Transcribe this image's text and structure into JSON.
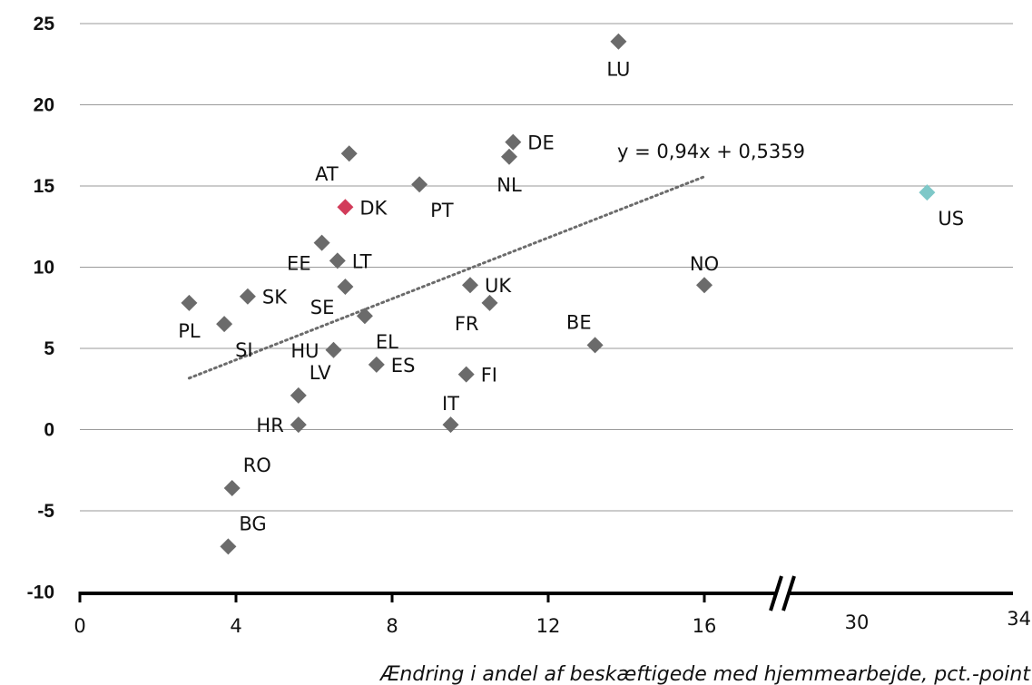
{
  "colors": {
    "point": "#6b6b6b",
    "highlight_dk": "#d23c5a",
    "highlight_us": "#7ec8c8",
    "grid": "#9a9a9a",
    "trend": "#6b6b6b"
  },
  "chart_data": {
    "type": "scatter",
    "title": "",
    "xlabel": "Ændring i andel af beskæftigede med hjemmearbejde, pct.-point",
    "ylabel": "",
    "xlim": [
      0,
      34
    ],
    "ylim": [
      -10,
      25
    ],
    "x_axis_break": "between 16 and 30",
    "yticks": [
      {
        "label": "25",
        "value": 25
      },
      {
        "label": "20",
        "value": 20
      },
      {
        "label": "15",
        "value": 15
      },
      {
        "label": "10",
        "value": 10
      },
      {
        "label": "5",
        "value": 5
      },
      {
        "label": "0",
        "value": 0
      },
      {
        "label": "-5",
        "value": -5
      },
      {
        "label": "-10",
        "value": -10
      }
    ],
    "xticks": [
      {
        "label": "0",
        "value": 0
      },
      {
        "label": "4",
        "value": 4
      },
      {
        "label": "8",
        "value": 8
      },
      {
        "label": "12",
        "value": 12
      },
      {
        "label": "16",
        "value": 16
      },
      {
        "label": "30",
        "value": 30
      },
      {
        "label": "34",
        "value": 34
      }
    ],
    "grid": true,
    "trendline": {
      "equation": "y = 0,94x + 0,5359",
      "slope": 0.94,
      "intercept": 0.5359,
      "x_range": [
        2.8,
        16
      ]
    },
    "points": [
      {
        "label": "LU",
        "x": 13.8,
        "y": 23.9,
        "color": "point",
        "label_pos": "below"
      },
      {
        "label": "DE",
        "x": 11.1,
        "y": 17.7,
        "color": "point",
        "label_pos": "right"
      },
      {
        "label": "NL",
        "x": 11.0,
        "y": 16.8,
        "color": "point",
        "label_pos": "below"
      },
      {
        "label": "AT",
        "x": 6.9,
        "y": 17.0,
        "color": "point",
        "label_pos": "below-left"
      },
      {
        "label": "PT",
        "x": 8.7,
        "y": 15.1,
        "color": "point",
        "label_pos": "below-right"
      },
      {
        "label": "DK",
        "x": 6.8,
        "y": 13.7,
        "color": "highlight_dk",
        "label_pos": "right"
      },
      {
        "label": "US",
        "x": 31.8,
        "y": 14.6,
        "color": "highlight_us",
        "label_pos": "below-right"
      },
      {
        "label": "EE",
        "x": 6.2,
        "y": 11.5,
        "color": "point",
        "label_pos": "below-left"
      },
      {
        "label": "LT",
        "x": 6.6,
        "y": 10.4,
        "color": "point",
        "label_pos": "right"
      },
      {
        "label": "NO",
        "x": 16.0,
        "y": 8.9,
        "color": "point",
        "label_pos": "above"
      },
      {
        "label": "UK",
        "x": 10.0,
        "y": 8.9,
        "color": "point",
        "label_pos": "right"
      },
      {
        "label": "SE",
        "x": 6.8,
        "y": 8.8,
        "color": "point",
        "label_pos": "below-left"
      },
      {
        "label": "SK",
        "x": 4.3,
        "y": 8.2,
        "color": "point",
        "label_pos": "right"
      },
      {
        "label": "FR",
        "x": 10.5,
        "y": 7.8,
        "color": "point",
        "label_pos": "below-left"
      },
      {
        "label": "PL",
        "x": 2.8,
        "y": 7.8,
        "color": "point",
        "label_pos": "below"
      },
      {
        "label": "EL",
        "x": 7.3,
        "y": 7.0,
        "color": "point",
        "label_pos": "below-right"
      },
      {
        "label": "SI",
        "x": 3.7,
        "y": 6.5,
        "color": "point",
        "label_pos": "below-right"
      },
      {
        "label": "BE",
        "x": 13.2,
        "y": 5.2,
        "color": "point",
        "label_pos": "above-left"
      },
      {
        "label": "HU",
        "x": 6.5,
        "y": 4.9,
        "color": "point",
        "label_pos": "left"
      },
      {
        "label": "ES",
        "x": 7.6,
        "y": 4.0,
        "color": "point",
        "label_pos": "right"
      },
      {
        "label": "FI",
        "x": 9.9,
        "y": 3.4,
        "color": "point",
        "label_pos": "right"
      },
      {
        "label": "LV",
        "x": 5.6,
        "y": 2.1,
        "color": "point",
        "label_pos": "above-right"
      },
      {
        "label": "HR",
        "x": 5.6,
        "y": 0.3,
        "color": "point",
        "label_pos": "left"
      },
      {
        "label": "IT",
        "x": 9.5,
        "y": 0.3,
        "color": "point",
        "label_pos": "above"
      },
      {
        "label": "RO",
        "x": 3.9,
        "y": -3.6,
        "color": "point",
        "label_pos": "above-right"
      },
      {
        "label": "BG",
        "x": 3.8,
        "y": -7.2,
        "color": "point",
        "label_pos": "above-right"
      }
    ]
  }
}
